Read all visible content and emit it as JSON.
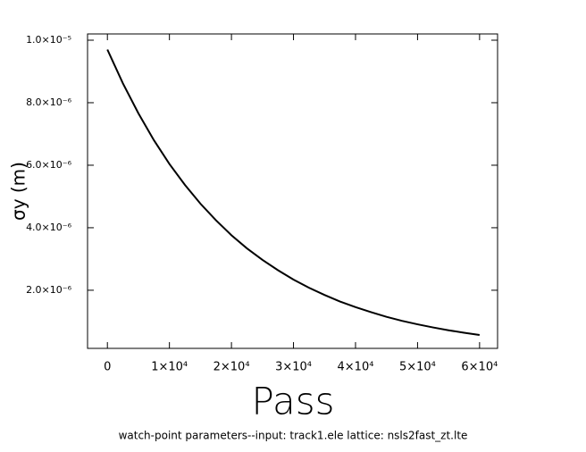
{
  "chart_data": {
    "type": "line",
    "x_label": "Pass",
    "y_label": "σy (m)",
    "footer": "watch-point parameters--input: track1.ele  lattice: nsls2fast_zt.lte",
    "x": [
      0,
      2500,
      5000,
      7500,
      10000,
      12500,
      15000,
      17500,
      20000,
      22500,
      25000,
      27500,
      30000,
      32500,
      35000,
      37500,
      40000,
      42500,
      45000,
      47500,
      50000,
      52500,
      55000,
      57500,
      60000
    ],
    "series": [
      {
        "color": "#000000",
        "values": [
          9.7e-06,
          8.62e-06,
          7.66e-06,
          6.8e-06,
          6.04e-06,
          5.37e-06,
          4.77e-06,
          4.24e-06,
          3.76e-06,
          3.34e-06,
          2.97e-06,
          2.64e-06,
          2.34e-06,
          2.08e-06,
          1.85e-06,
          1.64e-06,
          1.46e-06,
          1.3e-06,
          1.15e-06,
          1.02e-06,
          9.1e-07,
          8.1e-07,
          7.2e-07,
          6.4e-07,
          5.7e-07
        ]
      }
    ],
    "xlim": [
      -3200,
      62900
    ],
    "ylim": [
      1.4e-07,
      1.02e-05
    ],
    "xticks": [
      0,
      {
        "value": 10000,
        "label": "1×10⁴"
      },
      {
        "value": 20000,
        "label": "2×10⁴"
      },
      {
        "value": 30000,
        "label": "3×10⁴"
      },
      {
        "value": 40000,
        "label": "4×10⁴"
      },
      {
        "value": 50000,
        "label": "5×10⁴"
      },
      {
        "value": 60000,
        "label": "6×10⁴"
      }
    ],
    "yticks": [
      {
        "value": 2e-06,
        "label": "2.0×10⁻⁶"
      },
      {
        "value": 4e-06,
        "label": "4.0×10⁻⁶"
      },
      {
        "value": 6e-06,
        "label": "6.0×10⁻⁶"
      },
      {
        "value": 8e-06,
        "label": "8.0×10⁻⁶"
      },
      {
        "value": 1e-05,
        "label": "1.0×10⁻⁵"
      }
    ]
  }
}
